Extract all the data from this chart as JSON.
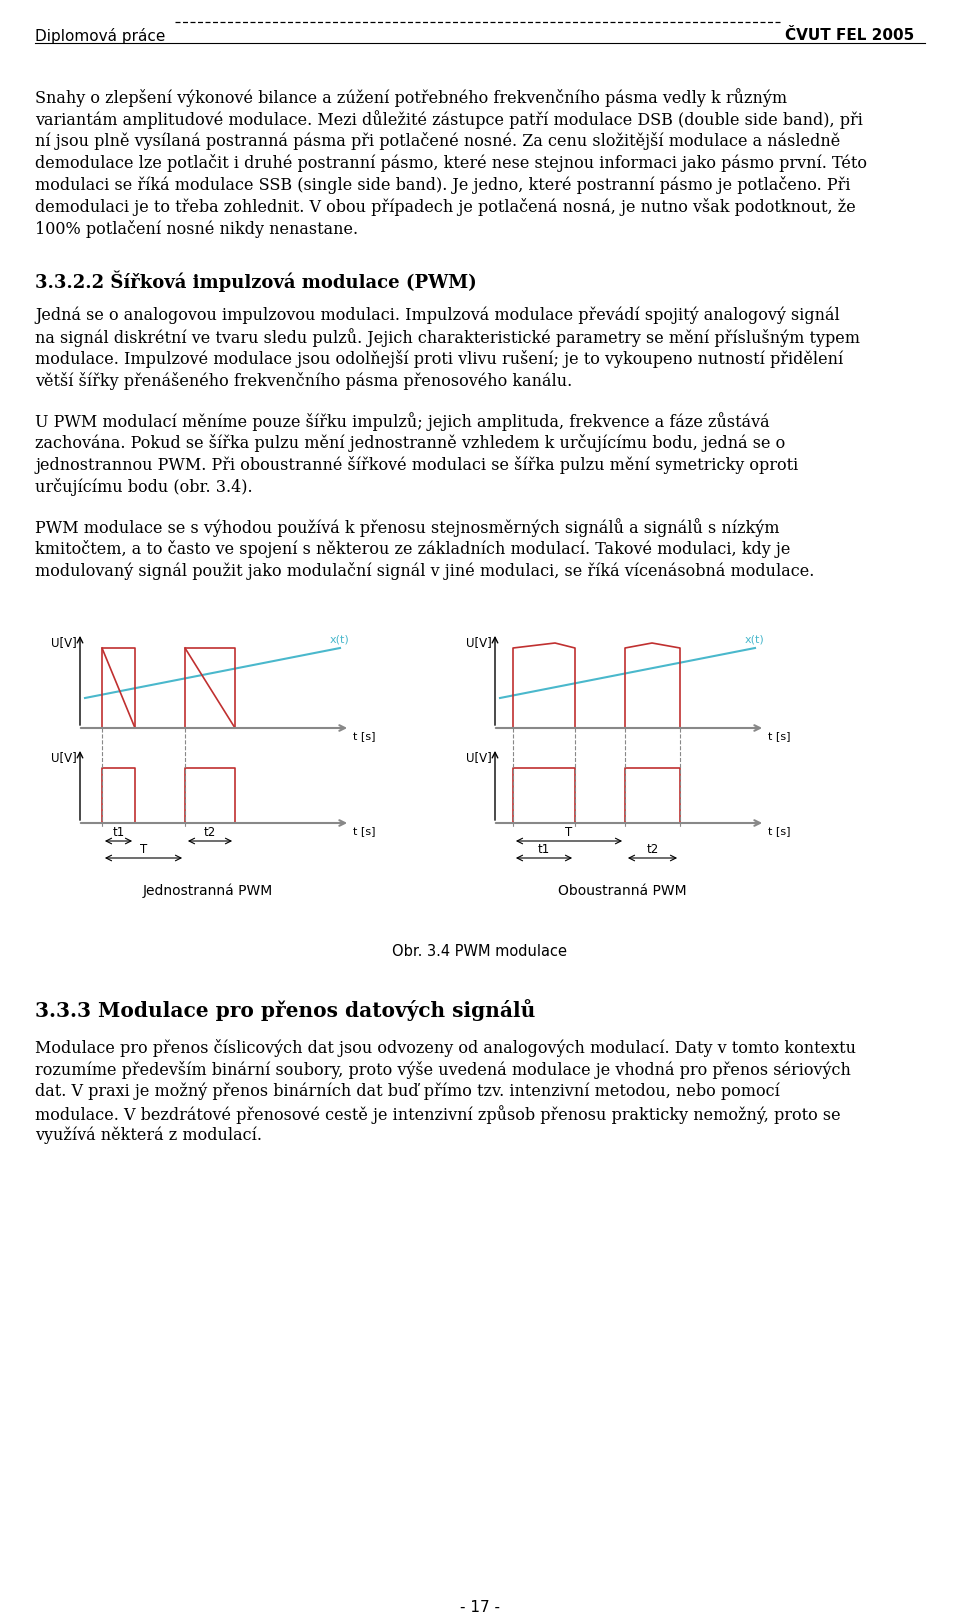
{
  "header_left": "Diplomová práce",
  "header_right": "ČVUT FEL 2005",
  "page_number": "- 17 -",
  "para1_lines": [
    "Snahy o zlepšení výkonové bilance a zúžení potřebného frekvenčního pásma vedly k různým",
    "variantám amplitudové modulace. Mezi důležité zástupce patří modulace DSB (double side band), při",
    "ní jsou plně vysílaná postranná pásma při potlačené nosné. Za cenu složitější modulace a následně",
    "demodulace lze potlačit i druhé postranní pásmo, které nese stejnou informaci jako pásmo první. Této",
    "modulaci se říká modulace SSB (single side band). Je jedno, které postranní pásmo je potlačeno. Při",
    "demodulaci je to třeba zohlednit. V obou případech je potlačená nosná, je nutno však podotknout, že",
    "100% potlačení nosné nikdy nenastane."
  ],
  "section_num": "3.3.2.2",
  "section_title": "Šířková impulzová modulace (PWM)",
  "section_text_lines": [
    "Jedná se o analogovou impulzovou modulaci. Impulzová modulace převádí spojitý analogový signál",
    "na signál diskrétní ve tvaru sledu pulzů. Jejich charakteristické parametry se mění příslušným typem",
    "modulace. Impulzové modulace jsou odolňejší proti vlivu rušení; je to vykoupeno nutností přidělení",
    "větší šířky přenášeného frekvenčního pásma přenosového kanálu."
  ],
  "pwm_para1_lines": [
    "U PWM modulací měníme pouze šířku impulzů; jejich amplituda, frekvence a fáze zůstává",
    "zachována. Pokud se šířka pulzu mění jednostranně vzhledem k určujícímu bodu, jedná se o",
    "jednostrannou PWM. Při oboustranné šířkové modulaci se šířka pulzu mění symetricky oproti",
    "určujícímu bodu (obr. 3.4)."
  ],
  "pwm_para2_lines": [
    "PWM modulace se s výhodou používá k přenosu stejnosměrných signálů a signálů s nízkým",
    "kmitočtem, a to často ve spojení s některou ze základních modulací. Takové modulaci, kdy je",
    "modulovaný signál použit jako modulační signál v jiné modulaci, se říká vícenásobná modulace."
  ],
  "fig_caption": "Obr. 3.4 PWM modulace",
  "fig_left_label": "Jednostranná PWM",
  "fig_right_label": "Oboustranná PWM",
  "section2_num": "3.3.3",
  "section2_title": "Modulace pro přenos datových signálů",
  "section2_text_lines": [
    "Modulace pro přenos číslicových dat jsou odvozeny od analogových modulací. Daty v tomto kontextu",
    "rozumíme především binární soubory, proto výše uvedená modulace je vhodná pro přenos sériových",
    "dat. V praxi je možný přenos binárních dat buď přímo tzv. intenzivní metodou, nebo pomocí",
    "modulace. V bezdrátové přenosové cestě je intenzivní způsob přenosu prakticky nemožný, proto se",
    "využívá některá z modulací."
  ],
  "bg_color": "#ffffff",
  "text_color": "#000000",
  "red_color": "#c03030",
  "cyan_color": "#4ab8cc",
  "gray_color": "#888888"
}
